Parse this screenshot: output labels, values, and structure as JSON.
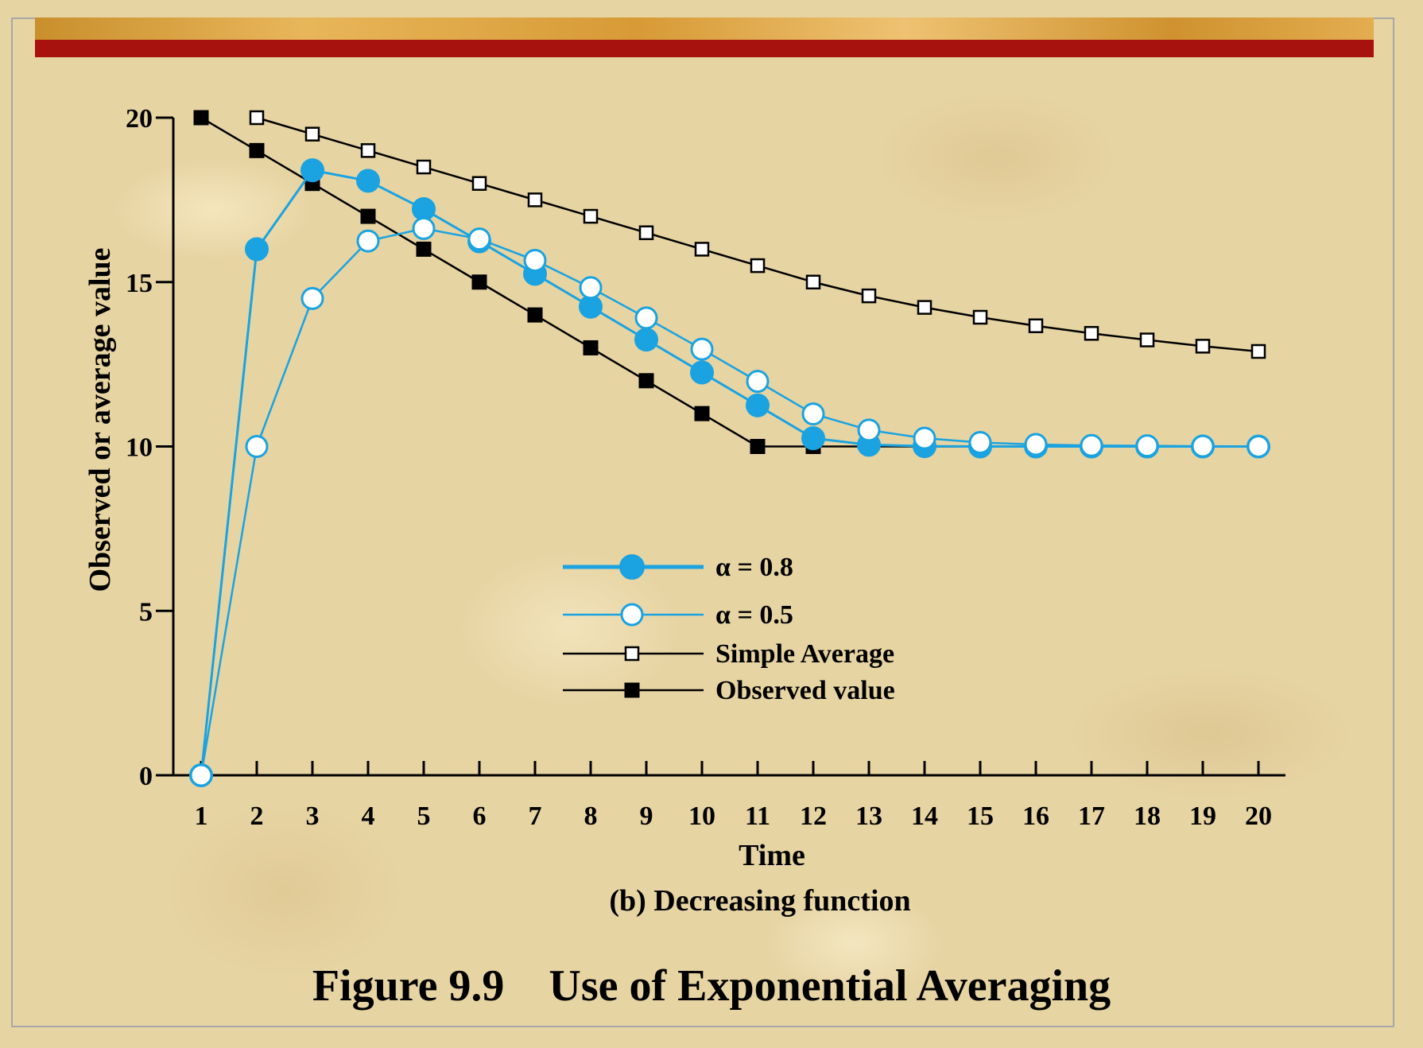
{
  "figure_caption": "Figure 9.9    Use of Exponential Averaging",
  "colors": {
    "blue": "#1aa3e0",
    "black": "#000000",
    "red_band": "#a8120e",
    "gold_band": "#d9a040"
  },
  "chart_data": {
    "type": "line",
    "title": "(b) Decreasing function",
    "xlabel": "Time",
    "ylabel": "Observed or average value",
    "categories": [
      1,
      2,
      3,
      4,
      5,
      6,
      7,
      8,
      9,
      10,
      11,
      12,
      13,
      14,
      15,
      16,
      17,
      18,
      19,
      20
    ],
    "xlim": [
      1,
      20
    ],
    "ylim": [
      0,
      20
    ],
    "yticks": [
      0,
      5,
      10,
      15,
      20
    ],
    "legend_position": "center",
    "series": [
      {
        "name": "α = 0.8",
        "marker": "filled-circle",
        "color": "#1aa3e0",
        "x": [
          1,
          2,
          3,
          4,
          5,
          6,
          7,
          8,
          9,
          10,
          11,
          12,
          13,
          14,
          15,
          16,
          17,
          18,
          19,
          20
        ],
        "values": [
          0,
          16,
          18.4,
          18.08,
          17.22,
          16.24,
          15.25,
          14.25,
          13.25,
          12.25,
          11.25,
          10.25,
          10.05,
          10.01,
          10,
          10,
          10,
          10,
          10,
          10
        ]
      },
      {
        "name": "α = 0.5",
        "marker": "open-circle",
        "color": "#1aa3e0",
        "x": [
          1,
          2,
          3,
          4,
          5,
          6,
          7,
          8,
          9,
          10,
          11,
          12,
          13,
          14,
          15,
          16,
          17,
          18,
          19,
          20
        ],
        "values": [
          0,
          10,
          14.5,
          16.25,
          16.63,
          16.31,
          15.66,
          14.83,
          13.91,
          12.96,
          11.98,
          10.99,
          10.5,
          10.25,
          10.12,
          10.06,
          10.03,
          10.02,
          10.01,
          10
        ]
      },
      {
        "name": "Simple Average",
        "marker": "open-square",
        "color": "#000000",
        "x": [
          2,
          3,
          4,
          5,
          6,
          7,
          8,
          9,
          10,
          11,
          12,
          13,
          14,
          15,
          16,
          17,
          18,
          19,
          20
        ],
        "values": [
          20,
          19.5,
          19,
          18.5,
          18,
          17.5,
          17,
          16.5,
          16,
          15.5,
          15,
          14.58,
          14.23,
          13.93,
          13.67,
          13.44,
          13.24,
          13.05,
          12.89
        ]
      },
      {
        "name": "Observed value",
        "marker": "filled-square",
        "color": "#000000",
        "x": [
          1,
          2,
          3,
          4,
          5,
          6,
          7,
          8,
          9,
          10,
          11,
          12,
          13,
          14,
          15,
          16,
          17,
          18,
          19,
          20
        ],
        "values": [
          20,
          19,
          18,
          17,
          16,
          15,
          14,
          13,
          12,
          11,
          10,
          10,
          10,
          10,
          10,
          10,
          10,
          10,
          10,
          10
        ]
      }
    ]
  }
}
